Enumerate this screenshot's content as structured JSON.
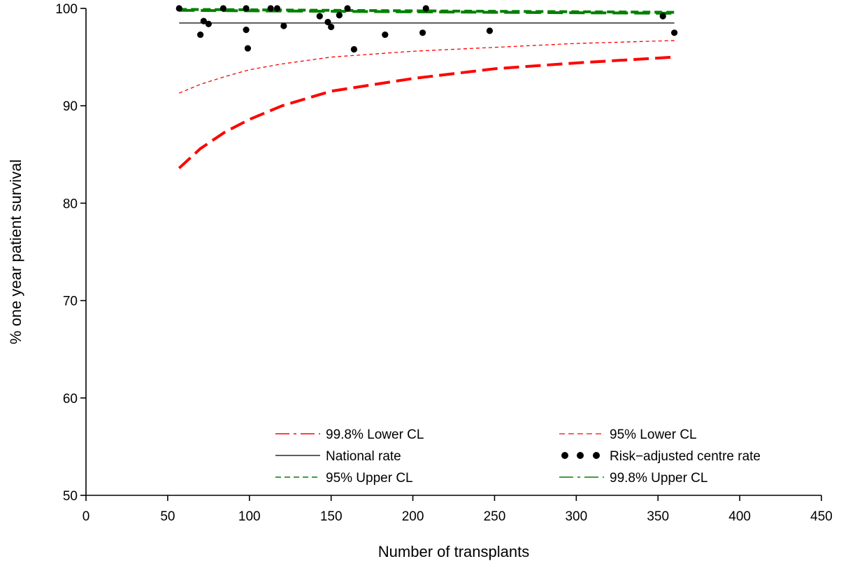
{
  "chart_data": {
    "type": "scatter",
    "title": "",
    "xlabel": "Number of transplants",
    "ylabel": "% one year patient survival",
    "xlim": [
      0,
      450
    ],
    "ylim": [
      50,
      100
    ],
    "xticks": [
      0,
      50,
      100,
      150,
      200,
      250,
      300,
      350,
      400,
      450
    ],
    "yticks": [
      50,
      60,
      70,
      80,
      90,
      100
    ],
    "grid": false,
    "legend_position": "bottom-inside",
    "national_rate": 98.5,
    "curve_n_range": [
      57,
      360
    ],
    "series": [
      {
        "name": "99.8% Lower CL",
        "kind": "line",
        "style": "long-dash",
        "width": "thick",
        "color": "#ff0000",
        "points": [
          [
            57,
            83.6
          ],
          [
            70,
            85.6
          ],
          [
            85,
            87.3
          ],
          [
            100,
            88.6
          ],
          [
            120,
            90.0
          ],
          [
            150,
            91.5
          ],
          [
            200,
            92.8
          ],
          [
            250,
            93.8
          ],
          [
            300,
            94.4
          ],
          [
            360,
            95.0
          ]
        ]
      },
      {
        "name": "95% Lower CL",
        "kind": "line",
        "style": "short-dash",
        "width": "thin",
        "color": "#ff0000",
        "points": [
          [
            57,
            91.3
          ],
          [
            70,
            92.2
          ],
          [
            85,
            93.0
          ],
          [
            100,
            93.7
          ],
          [
            120,
            94.3
          ],
          [
            150,
            95.0
          ],
          [
            200,
            95.6
          ],
          [
            250,
            96.0
          ],
          [
            300,
            96.4
          ],
          [
            360,
            96.7
          ]
        ]
      },
      {
        "name": "National rate",
        "kind": "line",
        "style": "solid",
        "width": "thin",
        "color": "#000000",
        "points": [
          [
            57,
            98.5
          ],
          [
            360,
            98.5
          ]
        ]
      },
      {
        "name": "Risk−adjusted centre rate",
        "kind": "points",
        "color": "#000000",
        "points": [
          [
            57,
            100
          ],
          [
            70,
            97.3
          ],
          [
            72,
            98.7
          ],
          [
            75,
            98.4
          ],
          [
            84,
            100
          ],
          [
            98,
            97.8
          ],
          [
            98,
            100
          ],
          [
            99,
            95.9
          ],
          [
            113,
            100
          ],
          [
            117,
            100
          ],
          [
            121,
            98.2
          ],
          [
            143,
            99.2
          ],
          [
            148,
            98.6
          ],
          [
            150,
            98.1
          ],
          [
            155,
            99.3
          ],
          [
            160,
            100
          ],
          [
            164,
            95.8
          ],
          [
            183,
            97.3
          ],
          [
            206,
            97.5
          ],
          [
            208,
            100
          ],
          [
            247,
            97.7
          ],
          [
            353,
            99.2
          ],
          [
            360,
            97.5
          ]
        ]
      },
      {
        "name": "95% Upper CL",
        "kind": "line",
        "style": "short-dash",
        "width": "thick",
        "color": "#008000",
        "points": [
          [
            57,
            99.9
          ],
          [
            150,
            99.8
          ],
          [
            250,
            99.7
          ],
          [
            360,
            99.6
          ]
        ]
      },
      {
        "name": "99.8% Upper CL",
        "kind": "line",
        "style": "long-dash",
        "width": "thick",
        "color": "#008000",
        "points": [
          [
            57,
            99.8
          ],
          [
            150,
            99.7
          ],
          [
            250,
            99.6
          ],
          [
            360,
            99.5
          ]
        ]
      }
    ]
  }
}
